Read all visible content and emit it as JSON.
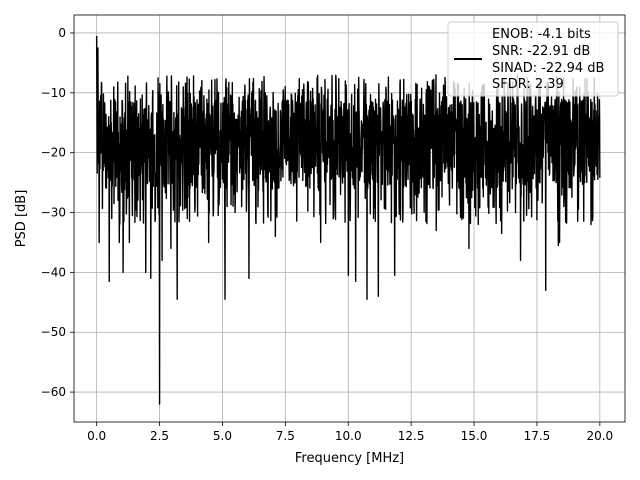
{
  "chart_data": {
    "type": "line",
    "title": "",
    "xlabel": "Frequency [MHz]",
    "ylabel": "PSD [dB]",
    "xlim": [
      -0.9,
      21.0
    ],
    "ylim": [
      -65,
      3
    ],
    "xticks": [
      0.0,
      2.5,
      5.0,
      7.5,
      10.0,
      12.5,
      15.0,
      17.5,
      20.0
    ],
    "xtick_labels": [
      "0.0",
      "2.5",
      "5.0",
      "7.5",
      "10.0",
      "12.5",
      "15.0",
      "17.5",
      "20.0"
    ],
    "yticks": [
      0,
      -10,
      -20,
      -30,
      -40,
      -50,
      -60
    ],
    "ytick_labels": [
      "0",
      "−10",
      "−20",
      "−30",
      "−40",
      "−50",
      "−60"
    ],
    "grid": true,
    "legend_position": "top-right",
    "legend": [
      "ENOB: -4.1 bits",
      "SNR: -22.91 dB",
      "SINAD: -22.94 dB",
      "SFDR: 2.39"
    ],
    "series": [
      {
        "color": "#000000",
        "description": "noise PSD, dense trace",
        "x_range": [
          0,
          20.0
        ],
        "points": 2000,
        "upper_envelope": -7,
        "body_low": -26,
        "body_high": -11,
        "dips": [
          [
            0.1,
            -35
          ],
          [
            0.5,
            -41.5
          ],
          [
            0.6,
            -31
          ],
          [
            0.9,
            -35
          ],
          [
            1.05,
            -40
          ],
          [
            1.3,
            -35
          ],
          [
            1.95,
            -40
          ],
          [
            2.15,
            -41
          ],
          [
            2.5,
            -62
          ],
          [
            2.6,
            -38
          ],
          [
            2.95,
            -36
          ],
          [
            3.2,
            -44.5
          ],
          [
            3.6,
            -31
          ],
          [
            4.45,
            -35
          ],
          [
            5.1,
            -44.5
          ],
          [
            5.5,
            -30
          ],
          [
            6.05,
            -41
          ],
          [
            7.1,
            -34
          ],
          [
            8.9,
            -35
          ],
          [
            10.0,
            -40.5
          ],
          [
            10.3,
            -41.5
          ],
          [
            10.75,
            -44.5
          ],
          [
            11.2,
            -44
          ],
          [
            11.85,
            -40.5
          ],
          [
            13.5,
            -33
          ],
          [
            14.8,
            -36
          ],
          [
            16.1,
            -33.5
          ],
          [
            16.85,
            -38
          ],
          [
            17.85,
            -43
          ],
          [
            18.35,
            -35.5
          ],
          [
            18.4,
            -35
          ],
          [
            19.65,
            -32
          ]
        ],
        "peaks": [
          [
            0.0,
            -0.5
          ],
          [
            0.05,
            -2.5
          ]
        ]
      }
    ]
  }
}
